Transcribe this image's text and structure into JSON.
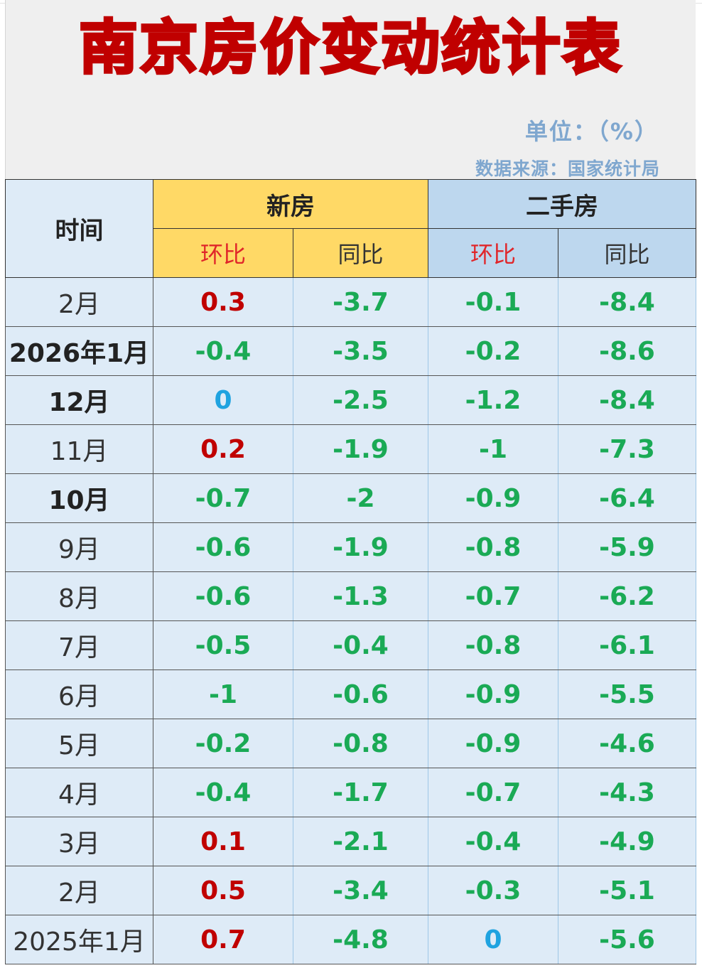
{
  "title": "南京房价变动统计表",
  "unit": "单位：（%）",
  "source": "数据来源：国家统计局",
  "headers": {
    "time": "时间",
    "new_house": "新房",
    "used_house": "二手房",
    "mom": "环比",
    "yoy": "同比"
  },
  "rows": [
    {
      "time": "2月",
      "new_mom": "0.3",
      "new_yoy": "-3.7",
      "used_mom": "-0.1",
      "used_yoy": "-8.4"
    },
    {
      "time": "2026年1月",
      "new_mom": "-0.4",
      "new_yoy": "-3.5",
      "used_mom": "-0.2",
      "used_yoy": "-8.6"
    },
    {
      "time": "12月",
      "new_mom": "0",
      "new_yoy": "-2.5",
      "used_mom": "-1.2",
      "used_yoy": "-8.4"
    },
    {
      "time": "11月",
      "new_mom": "0.2",
      "new_yoy": "-1.9",
      "used_mom": "-1",
      "used_yoy": "-7.3"
    },
    {
      "time": "10月",
      "new_mom": "-0.7",
      "new_yoy": "-2",
      "used_mom": "-0.9",
      "used_yoy": "-6.4"
    },
    {
      "time": "9月",
      "new_mom": "-0.6",
      "new_yoy": "-1.9",
      "used_mom": "-0.8",
      "used_yoy": "-5.9"
    },
    {
      "time": "8月",
      "new_mom": "-0.6",
      "new_yoy": "-1.3",
      "used_mom": "-0.7",
      "used_yoy": "-6.2"
    },
    {
      "time": "7月",
      "new_mom": "-0.5",
      "new_yoy": "-0.4",
      "used_mom": "-0.8",
      "used_yoy": "-6.1"
    },
    {
      "time": "6月",
      "new_mom": "-1",
      "new_yoy": "-0.6",
      "used_mom": "-0.9",
      "used_yoy": "-5.5"
    },
    {
      "time": "5月",
      "new_mom": "-0.2",
      "new_yoy": "-0.8",
      "used_mom": "-0.9",
      "used_yoy": "-4.6"
    },
    {
      "time": "4月",
      "new_mom": "-0.4",
      "new_yoy": "-1.7",
      "used_mom": "-0.7",
      "used_yoy": "-4.3"
    },
    {
      "time": "3月",
      "new_mom": "0.1",
      "new_yoy": "-2.1",
      "used_mom": "-0.4",
      "used_yoy": "-4.9"
    },
    {
      "time": "2月",
      "new_mom": "0.5",
      "new_yoy": "-3.4",
      "used_mom": "-0.3",
      "used_yoy": "-5.1"
    },
    {
      "time": "2025年1月",
      "new_mom": "0.7",
      "new_yoy": "-4.8",
      "used_mom": "0",
      "used_yoy": "-5.6"
    }
  ],
  "colors": {
    "positive": "#c00000",
    "negative": "#1aaa55",
    "zero": "#1fa3e0",
    "title": "#c00000",
    "new_header_bg": "#ffd966",
    "used_header_bg": "#bdd7ee",
    "cell_bg": "#deebf7"
  }
}
